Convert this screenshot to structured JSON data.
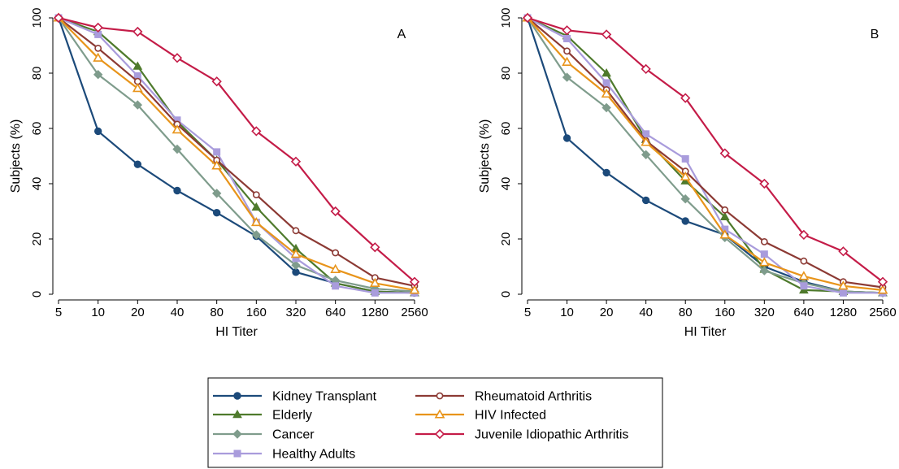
{
  "x_ticks": [
    "5",
    "10",
    "20",
    "40",
    "80",
    "160",
    "320",
    "640",
    "1280",
    "2560"
  ],
  "colors": {
    "Kidney Transplant": "#1c4a7a",
    "Elderly": "#4e7a2c",
    "Cancer": "#7f9c8c",
    "Healthy Adults": "#a99cdc",
    "Rheumatoid Arthritis": "#8c3a34",
    "HIV Infected": "#e8941a",
    "Juvenile Idiopathic Arthritis": "#c41c48"
  },
  "markers": {
    "Kidney Transplant": "circle",
    "Elderly": "triangle",
    "Cancer": "diamond",
    "Healthy Adults": "square",
    "Rheumatoid Arthritis": "circle-open",
    "HIV Infected": "triangle-open",
    "Juvenile Idiopathic Arthritis": "diamond-open"
  },
  "legend": {
    "position": "bottom-center",
    "columns": [
      [
        "Kidney Transplant",
        "Elderly",
        "Cancer",
        "Healthy Adults"
      ],
      [
        "Rheumatoid Arthritis",
        "HIV Infected",
        "Juvenile Idiopathic Arthritis"
      ]
    ]
  },
  "chart_data": [
    {
      "type": "line",
      "panel_label": "A",
      "xlabel": "HI Titer",
      "ylabel": "Subjects (%)",
      "ylim": [
        0,
        100
      ],
      "yticks": [
        0,
        20,
        40,
        60,
        80,
        100
      ],
      "x": [
        "5",
        "10",
        "20",
        "40",
        "80",
        "160",
        "320",
        "640",
        "1280",
        "2560"
      ],
      "series": [
        {
          "name": "Kidney Transplant",
          "values": [
            100,
            59,
            47,
            37.5,
            29.5,
            21,
            8,
            4,
            1,
            0.5
          ]
        },
        {
          "name": "Elderly",
          "values": [
            100,
            95,
            82.5,
            62.5,
            48.5,
            31.5,
            16.5,
            4,
            1,
            0.5
          ]
        },
        {
          "name": "Cancer",
          "values": [
            100,
            79.5,
            68.5,
            52.5,
            36.5,
            21.5,
            10.5,
            5,
            2,
            1
          ]
        },
        {
          "name": "Healthy Adults",
          "values": [
            100,
            94,
            79,
            63,
            51.5,
            26,
            13,
            3,
            0.5,
            0.5
          ]
        },
        {
          "name": "Rheumatoid Arthritis",
          "values": [
            100,
            89,
            77,
            61.5,
            48.5,
            36,
            23,
            15,
            6,
            3
          ]
        },
        {
          "name": "HIV Infected",
          "values": [
            100,
            85.5,
            74.5,
            59.5,
            46.5,
            26,
            14.5,
            9,
            4,
            1.5
          ]
        },
        {
          "name": "Juvenile Idiopathic Arthritis",
          "values": [
            100,
            96.5,
            95,
            85.5,
            77,
            59,
            48,
            30,
            17,
            4.5
          ]
        }
      ]
    },
    {
      "type": "line",
      "panel_label": "B",
      "xlabel": "HI Titer",
      "ylabel": "Subjects (%)",
      "ylim": [
        0,
        100
      ],
      "yticks": [
        0,
        20,
        40,
        60,
        80,
        100
      ],
      "x": [
        "5",
        "10",
        "20",
        "40",
        "80",
        "160",
        "320",
        "640",
        "1280",
        "2560"
      ],
      "series": [
        {
          "name": "Kidney Transplant",
          "values": [
            100,
            56.5,
            44,
            34,
            26.5,
            21.5,
            10,
            4.5,
            1,
            0.5
          ]
        },
        {
          "name": "Elderly",
          "values": [
            100,
            93.5,
            80,
            56,
            41,
            28,
            9,
            1.5,
            1,
            0.5
          ]
        },
        {
          "name": "Cancer",
          "values": [
            100,
            78.5,
            67.5,
            50.5,
            34.5,
            20.5,
            8.5,
            4,
            1,
            0.5
          ]
        },
        {
          "name": "Healthy Adults",
          "values": [
            100,
            92.5,
            76.5,
            58,
            49,
            23.5,
            14.5,
            3,
            0.5,
            0.5
          ]
        },
        {
          "name": "Rheumatoid Arthritis",
          "values": [
            100,
            88,
            74,
            55.5,
            44.5,
            30.5,
            19,
            12,
            4.5,
            2.5
          ]
        },
        {
          "name": "HIV Infected",
          "values": [
            100,
            84,
            72.5,
            55,
            42.5,
            21.5,
            11.5,
            6.5,
            3,
            1.5
          ]
        },
        {
          "name": "Juvenile Idiopathic Arthritis",
          "values": [
            100,
            95.5,
            94,
            81.5,
            71,
            51,
            40,
            21.5,
            15.5,
            4.5
          ]
        }
      ]
    }
  ]
}
